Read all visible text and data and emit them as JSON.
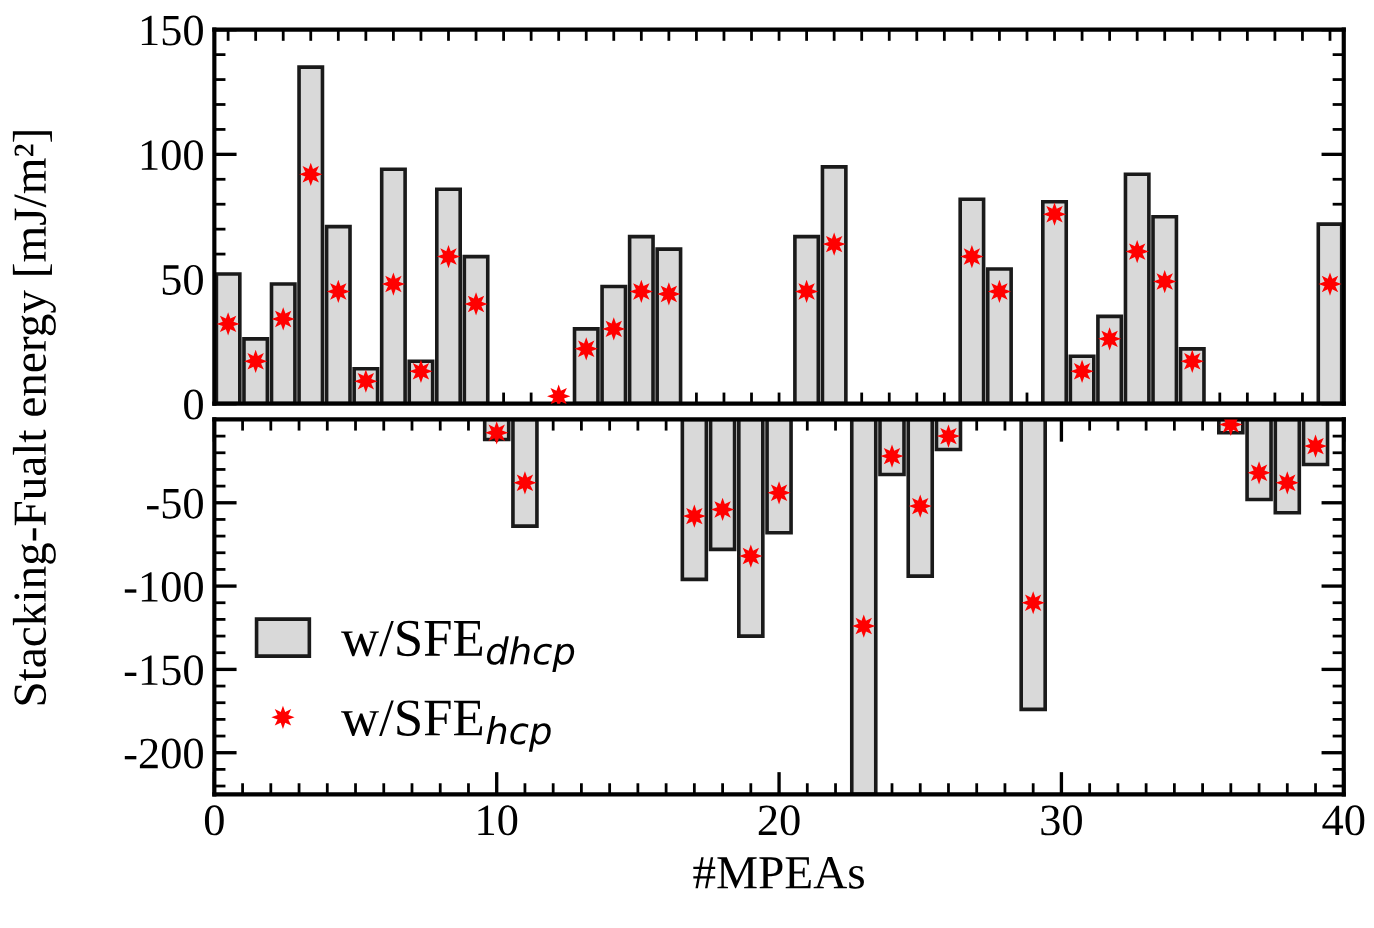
{
  "chart_data": [
    {
      "type": "bar",
      "ylabel": "Stacking-Fualt energy [mJ/m²]",
      "categories": [
        null,
        null,
        null,
        null,
        null,
        null,
        null,
        null,
        null,
        null,
        null,
        null,
        null,
        null,
        null,
        null,
        null,
        null,
        null,
        null,
        null,
        null,
        null,
        null,
        null,
        null,
        null,
        null,
        null,
        null,
        null,
        null,
        null,
        null,
        null,
        null,
        null,
        null,
        null,
        null,
        null
      ],
      "ylim": [
        0,
        150
      ],
      "yticks": [
        0,
        50,
        100,
        150
      ],
      "tick_labels": "y",
      "series": [
        {
          "color": "#d9d9d9",
          "values": [
            52,
            26,
            48,
            135,
            71,
            14,
            94,
            17,
            86,
            59,
            null,
            null,
            null,
            30,
            47,
            67,
            62,
            null,
            null,
            null,
            null,
            67,
            95,
            null,
            null,
            null,
            null,
            82,
            54,
            null,
            81,
            19,
            35,
            92,
            75,
            22,
            null,
            null,
            null,
            null,
            72
          ]
        },
        {
          "type": "scatter",
          "color": "#ff0000",
          "marker": "star",
          "values": [
            32,
            17,
            34,
            92,
            45,
            9,
            48,
            13,
            59,
            40,
            null,
            null,
            3,
            22,
            30,
            45,
            44,
            null,
            null,
            null,
            null,
            45,
            64,
            null,
            null,
            null,
            null,
            59,
            45,
            null,
            76,
            13,
            26,
            61,
            49,
            17,
            null,
            null,
            null,
            null,
            48
          ]
        }
      ]
    },
    {
      "type": "bar",
      "xlabel": "#MPEAs",
      "xlim": [
        0,
        40
      ],
      "xticks": [
        0,
        10,
        20,
        30,
        40
      ],
      "ylim": [
        -225,
        0
      ],
      "yticks": [
        -50,
        -100,
        -150,
        -200
      ],
      "legend": "bottom left",
      "series": [
        {
          "name": "w/SFE$_{dhcp}$",
          "color": "#d9d9d9",
          "x": [
            10,
            11,
            17,
            18,
            19,
            20,
            23,
            24,
            25,
            26,
            29,
            36,
            37,
            38,
            39
          ],
          "values": [
            -12,
            -64,
            -96,
            -78,
            -130,
            -68,
            -225,
            -33,
            -94,
            -18,
            -174,
            -8,
            -48,
            -56,
            -27
          ]
        },
        {
          "type": "scatter",
          "name": "w/SFE$_{hcp}$",
          "color": "#ff0000",
          "marker": "star",
          "x": [
            10,
            11,
            17,
            18,
            19,
            20,
            23,
            24,
            25,
            26,
            29,
            36,
            37,
            38,
            39
          ],
          "values": [
            -8,
            -38,
            -58,
            -54,
            -82,
            -44,
            -124,
            -22,
            -52,
            -10,
            -110,
            -3,
            -32,
            -38,
            -16
          ]
        }
      ]
    }
  ]
}
